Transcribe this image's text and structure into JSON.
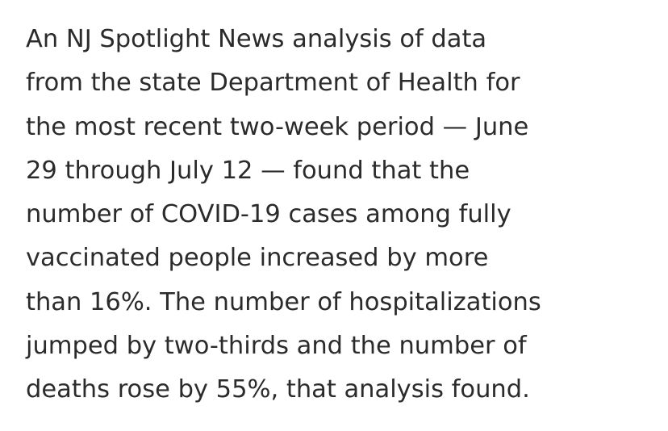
{
  "paragraph": {
    "lines": [
      "An NJ Spotlight News analysis of data",
      "from the state Department of Health for",
      "the most recent two-week period — June",
      "29 through July 12 — found that the",
      "number of COVID-19 cases among fully",
      "vaccinated people increased by more",
      "than 16%. The number of hospitalizations",
      "jumped by two-thirds and the number of",
      "deaths rose by 55%, that analysis found."
    ]
  },
  "colors": {
    "text": "#2b2b2b",
    "background": "#ffffff"
  }
}
